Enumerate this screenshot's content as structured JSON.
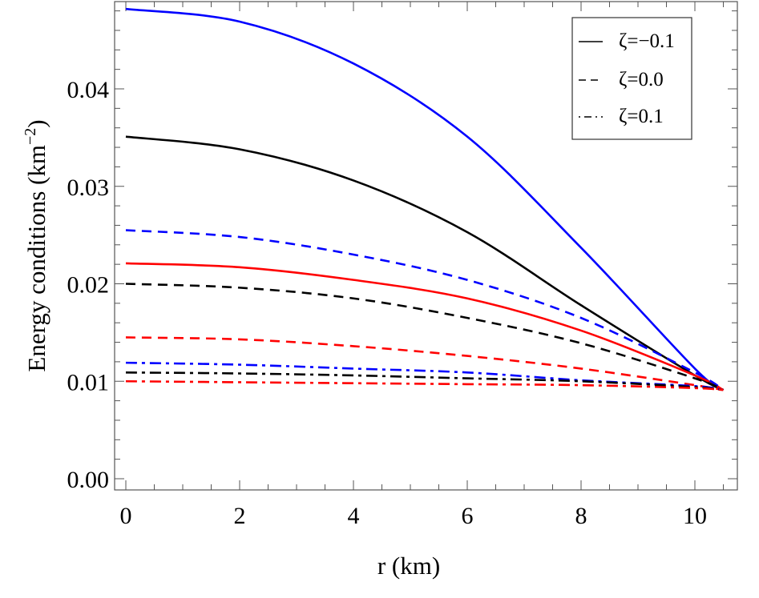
{
  "chart_data": {
    "type": "line",
    "title": "",
    "xlabel": "r (km)",
    "ylabel": "Energy conditions (km",
    "ylabel_sup": "−2",
    "ylabel_close": ")",
    "xlim": [
      -0.2,
      10.8
    ],
    "ylim": [
      -0.0011,
      0.0487
    ],
    "x_ticks": [
      0,
      2,
      4,
      6,
      8,
      10
    ],
    "x_tick_labels": [
      "0",
      "2",
      "4",
      "6",
      "8",
      "10"
    ],
    "y_ticks": [
      0,
      0.01,
      0.02,
      0.03,
      0.04
    ],
    "y_tick_labels": [
      "0.00",
      "0.01",
      "0.02",
      "0.03",
      "0.04"
    ],
    "grid": false,
    "legend_position": "top-right",
    "legend": [
      {
        "label": "ζ=−0.1",
        "style": "solid"
      },
      {
        "label": "ζ=0.0",
        "style": "dashed"
      },
      {
        "label": "ζ=0.1",
        "style": "dashdot"
      }
    ],
    "x": [
      0,
      2,
      4,
      6,
      8,
      10,
      10.5
    ],
    "series": [
      {
        "style": "solid",
        "color": "#0000ff",
        "values": [
          0.0482,
          0.0469,
          0.0426,
          0.0351,
          0.0237,
          0.0113,
          0.0091
        ]
      },
      {
        "style": "solid",
        "color": "#000000",
        "values": [
          0.0351,
          0.0338,
          0.0306,
          0.0253,
          0.0178,
          0.0106,
          0.0091
        ]
      },
      {
        "style": "solid",
        "color": "#ff0000",
        "values": [
          0.0221,
          0.0217,
          0.0204,
          0.0185,
          0.0152,
          0.0106,
          0.0091
        ]
      },
      {
        "style": "dashed",
        "color": "#0000ff",
        "values": [
          0.0255,
          0.0248,
          0.023,
          0.0204,
          0.0165,
          0.0109,
          0.0091
        ]
      },
      {
        "style": "dashed",
        "color": "#000000",
        "values": [
          0.02,
          0.0196,
          0.0185,
          0.0165,
          0.0139,
          0.0103,
          0.0091
        ]
      },
      {
        "style": "dashed",
        "color": "#ff0000",
        "values": [
          0.0145,
          0.0143,
          0.0136,
          0.0126,
          0.0113,
          0.0096,
          0.0091
        ]
      },
      {
        "style": "dashdot",
        "color": "#0000ff",
        "values": [
          0.0119,
          0.0117,
          0.0113,
          0.0109,
          0.0101,
          0.0095,
          0.0091
        ]
      },
      {
        "style": "dashdot",
        "color": "#000000",
        "values": [
          0.0109,
          0.0108,
          0.0106,
          0.0103,
          0.01,
          0.0094,
          0.0091
        ]
      },
      {
        "style": "dashdot",
        "color": "#ff0000",
        "values": [
          0.01,
          0.0099,
          0.0098,
          0.0097,
          0.0096,
          0.0093,
          0.0091
        ]
      }
    ]
  }
}
